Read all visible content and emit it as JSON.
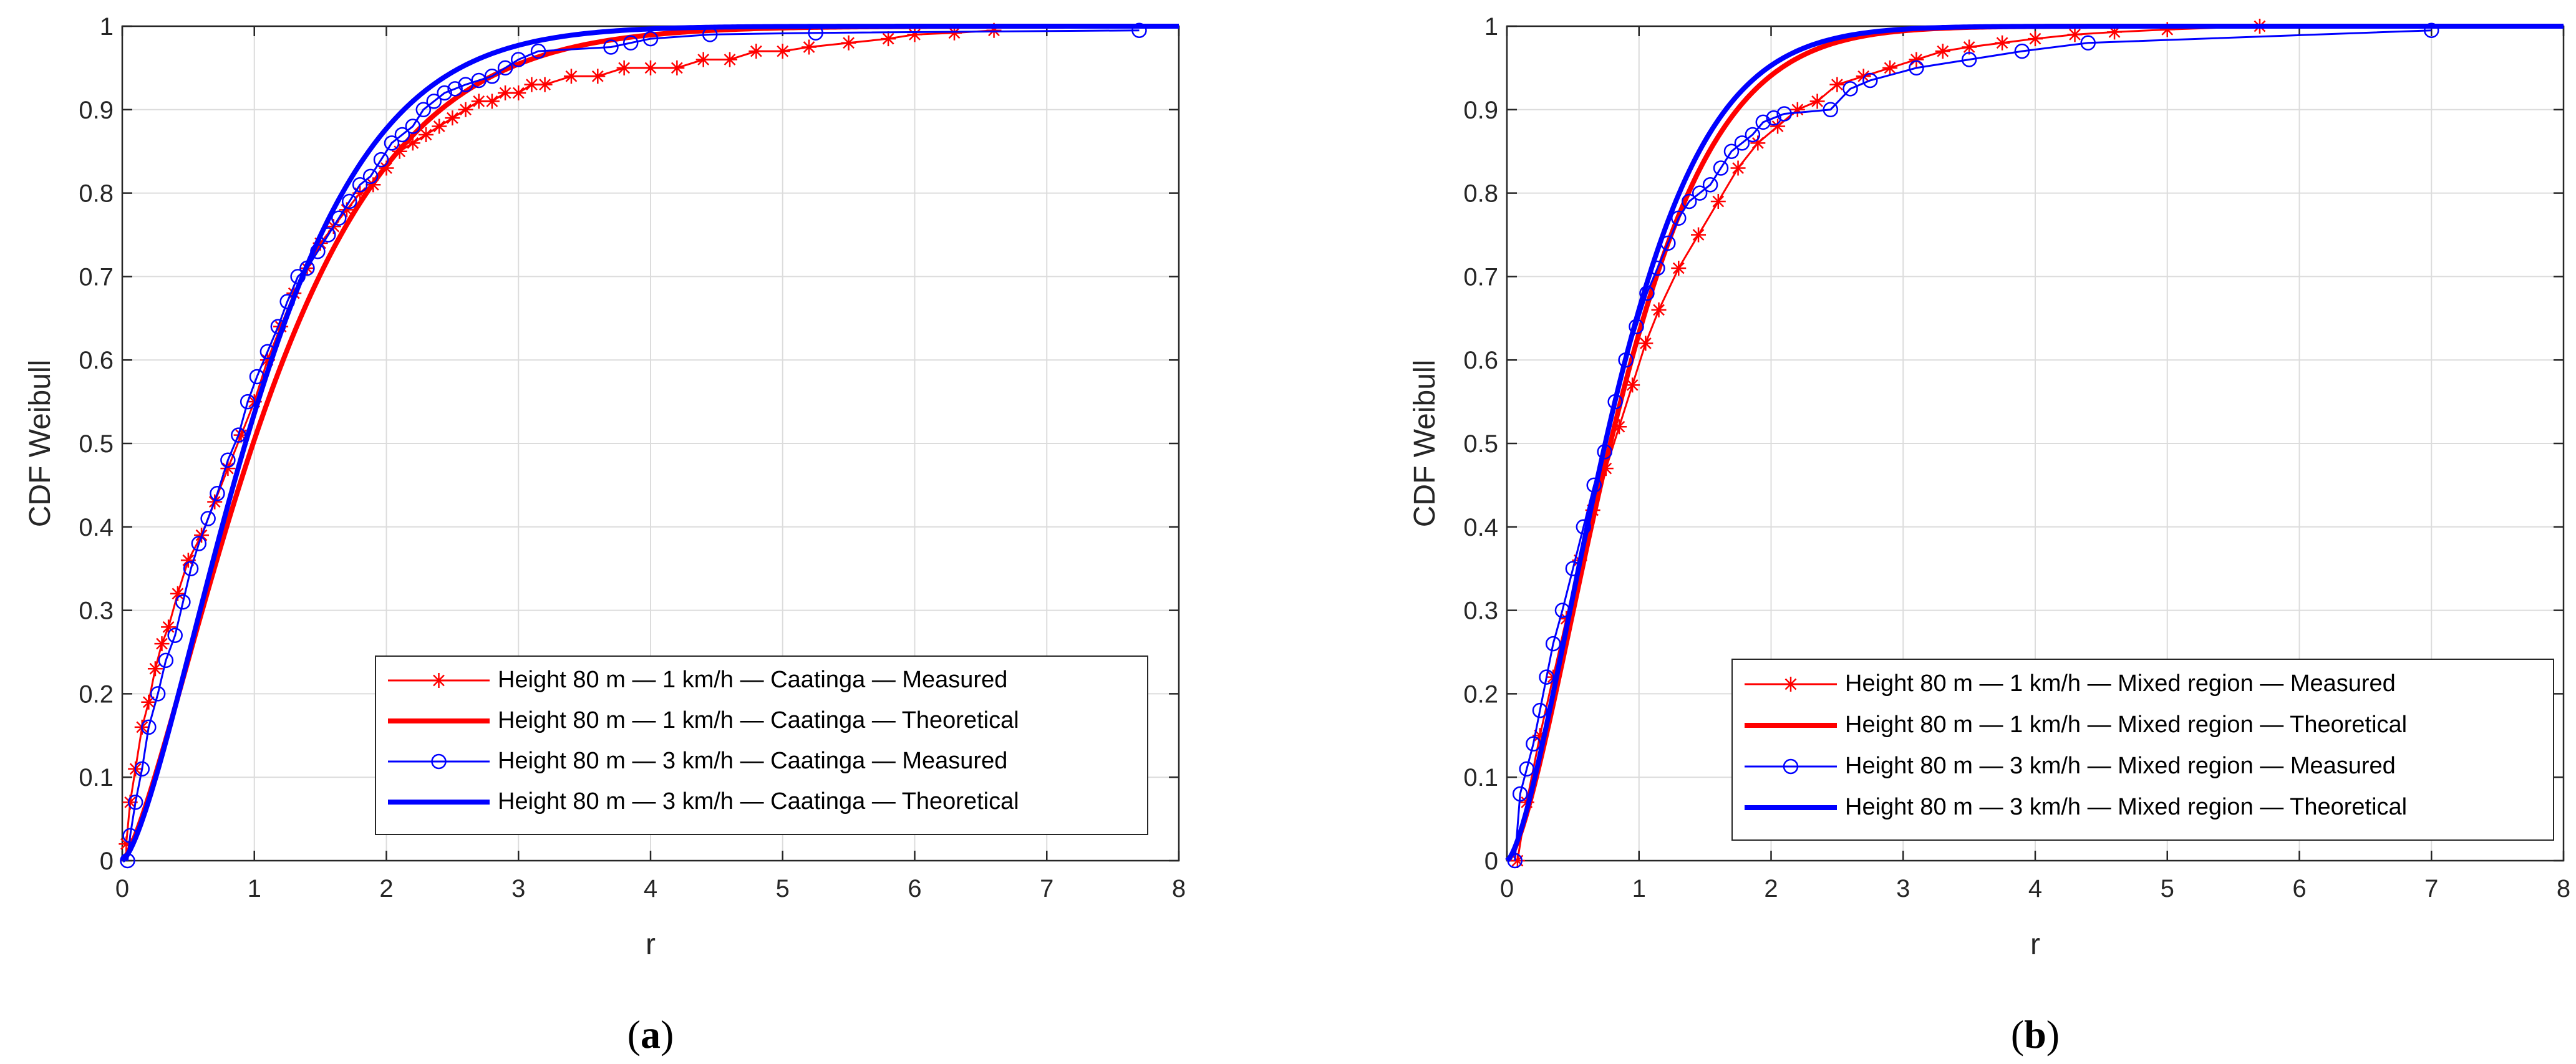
{
  "figure": {
    "captions": [
      "a",
      "b"
    ]
  },
  "chart_data": [
    {
      "type": "line",
      "caption": "a",
      "xlabel": "r",
      "ylabel": "CDF Weibull",
      "xlim": [
        0,
        8
      ],
      "ylim": [
        0,
        1
      ],
      "xticks": [
        "0",
        "1",
        "2",
        "3",
        "4",
        "5",
        "6",
        "7",
        "8"
      ],
      "yticks": [
        "0",
        "0.1",
        "0.2",
        "0.3",
        "0.4",
        "0.5",
        "0.6",
        "0.7",
        "0.8",
        "0.9",
        "1"
      ],
      "grid": true,
      "legend_position": "bottom-right",
      "colors": {
        "red": "#ff0000",
        "blue": "#0000ff"
      },
      "series": [
        {
          "name": "Height 80 m — 1 km/h — Caatinga — Measured",
          "style": "measured",
          "color": "#ff0000",
          "marker": "asterisk",
          "x": [
            0.03,
            0.06,
            0.1,
            0.15,
            0.2,
            0.25,
            0.3,
            0.35,
            0.42,
            0.5,
            0.6,
            0.7,
            0.8,
            0.9,
            1.0,
            1.1,
            1.2,
            1.3,
            1.4,
            1.5,
            1.6,
            1.7,
            1.8,
            1.9,
            2.0,
            2.1,
            2.2,
            2.3,
            2.4,
            2.5,
            2.6,
            2.7,
            2.8,
            2.9,
            3.0,
            3.1,
            3.2,
            3.4,
            3.6,
            3.8,
            4.0,
            4.2,
            4.4,
            4.6,
            4.8,
            5.0,
            5.2,
            5.5,
            5.8,
            6.0,
            6.3,
            6.6
          ],
          "y": [
            0.02,
            0.07,
            0.11,
            0.16,
            0.19,
            0.23,
            0.26,
            0.28,
            0.32,
            0.36,
            0.39,
            0.43,
            0.47,
            0.51,
            0.55,
            0.6,
            0.64,
            0.68,
            0.71,
            0.74,
            0.76,
            0.78,
            0.8,
            0.81,
            0.83,
            0.85,
            0.86,
            0.87,
            0.88,
            0.89,
            0.9,
            0.91,
            0.91,
            0.92,
            0.92,
            0.93,
            0.93,
            0.94,
            0.94,
            0.95,
            0.95,
            0.95,
            0.96,
            0.96,
            0.97,
            0.97,
            0.975,
            0.98,
            0.985,
            0.99,
            0.992,
            0.995
          ]
        },
        {
          "name": "Height 80 m — 1 km/h — Caatinga — Theoretical",
          "style": "theoretical",
          "color": "#ff0000",
          "weibull": {
            "scale": 1.3,
            "shape": 1.35
          }
        },
        {
          "name": "Height 80 m — 3 km/h — Caatinga — Measured",
          "style": "measured",
          "color": "#0000ff",
          "marker": "circle",
          "x": [
            0.04,
            0.06,
            0.1,
            0.15,
            0.2,
            0.27,
            0.33,
            0.4,
            0.46,
            0.52,
            0.58,
            0.65,
            0.72,
            0.8,
            0.88,
            0.95,
            1.02,
            1.1,
            1.18,
            1.25,
            1.33,
            1.4,
            1.48,
            1.56,
            1.64,
            1.72,
            1.8,
            1.88,
            1.96,
            2.04,
            2.12,
            2.2,
            2.28,
            2.36,
            2.44,
            2.52,
            2.6,
            2.7,
            2.8,
            2.9,
            3.0,
            3.15,
            3.7,
            3.85,
            4.0,
            4.45,
            5.25,
            7.7
          ],
          "y": [
            0.0,
            0.03,
            0.07,
            0.11,
            0.16,
            0.2,
            0.24,
            0.27,
            0.31,
            0.35,
            0.38,
            0.41,
            0.44,
            0.48,
            0.51,
            0.55,
            0.58,
            0.61,
            0.64,
            0.67,
            0.7,
            0.71,
            0.73,
            0.75,
            0.77,
            0.79,
            0.81,
            0.82,
            0.84,
            0.86,
            0.87,
            0.88,
            0.9,
            0.91,
            0.92,
            0.925,
            0.93,
            0.935,
            0.94,
            0.95,
            0.96,
            0.97,
            0.975,
            0.98,
            0.985,
            0.99,
            0.992,
            0.995
          ]
        },
        {
          "name": "Height 80 m — 3 km/h — Caatinga — Theoretical",
          "style": "theoretical",
          "color": "#0000ff",
          "weibull": {
            "scale": 1.2,
            "shape": 1.45
          }
        }
      ]
    },
    {
      "type": "line",
      "caption": "b",
      "xlabel": "r",
      "ylabel": "CDF Weibull",
      "xlim": [
        0,
        8
      ],
      "ylim": [
        0,
        1
      ],
      "xticks": [
        "0",
        "1",
        "2",
        "3",
        "4",
        "5",
        "6",
        "7",
        "8"
      ],
      "yticks": [
        "0",
        "0.1",
        "0.2",
        "0.3",
        "0.4",
        "0.5",
        "0.6",
        "0.7",
        "0.8",
        "0.9",
        "1"
      ],
      "grid": true,
      "legend_position": "bottom-right",
      "colors": {
        "red": "#ff0000",
        "blue": "#0000ff"
      },
      "series": [
        {
          "name": "Height 80 m — 1 km/h — Mixed region — Measured",
          "style": "measured",
          "color": "#ff0000",
          "marker": "asterisk",
          "x": [
            0.08,
            0.15,
            0.25,
            0.35,
            0.45,
            0.55,
            0.65,
            0.75,
            0.85,
            0.95,
            1.05,
            1.15,
            1.3,
            1.45,
            1.6,
            1.75,
            1.9,
            2.05,
            2.2,
            2.35,
            2.5,
            2.7,
            2.9,
            3.1,
            3.3,
            3.5,
            3.75,
            4.0,
            4.3,
            4.6,
            5.0,
            5.7
          ],
          "y": [
            0.0,
            0.07,
            0.15,
            0.22,
            0.29,
            0.36,
            0.42,
            0.47,
            0.52,
            0.57,
            0.62,
            0.66,
            0.71,
            0.75,
            0.79,
            0.83,
            0.86,
            0.88,
            0.9,
            0.91,
            0.93,
            0.94,
            0.95,
            0.96,
            0.97,
            0.975,
            0.98,
            0.985,
            0.99,
            0.993,
            0.996,
            1.0
          ]
        },
        {
          "name": "Height 80 m — 1 km/h — Mixed region — Theoretical",
          "style": "theoretical",
          "color": "#ff0000",
          "weibull": {
            "scale": 1.0,
            "shape": 1.5
          }
        },
        {
          "name": "Height 80 m — 3 km/h — Mixed region — Measured",
          "style": "measured",
          "color": "#0000ff",
          "marker": "circle",
          "x": [
            0.06,
            0.1,
            0.15,
            0.2,
            0.25,
            0.3,
            0.35,
            0.42,
            0.5,
            0.58,
            0.66,
            0.74,
            0.82,
            0.9,
            0.98,
            1.06,
            1.14,
            1.22,
            1.3,
            1.38,
            1.46,
            1.54,
            1.62,
            1.7,
            1.78,
            1.86,
            1.94,
            2.02,
            2.1,
            2.45,
            2.6,
            2.75,
            3.1,
            3.5,
            3.9,
            4.4,
            7.0
          ],
          "y": [
            0.0,
            0.08,
            0.11,
            0.14,
            0.18,
            0.22,
            0.26,
            0.3,
            0.35,
            0.4,
            0.45,
            0.49,
            0.55,
            0.6,
            0.64,
            0.68,
            0.71,
            0.74,
            0.77,
            0.79,
            0.8,
            0.81,
            0.83,
            0.85,
            0.86,
            0.87,
            0.885,
            0.89,
            0.895,
            0.9,
            0.925,
            0.935,
            0.95,
            0.96,
            0.97,
            0.98,
            0.995
          ]
        },
        {
          "name": "Height 80 m — 3 km/h — Mixed region — Theoretical",
          "style": "theoretical",
          "color": "#0000ff",
          "weibull": {
            "scale": 0.95,
            "shape": 1.5
          }
        }
      ]
    }
  ]
}
